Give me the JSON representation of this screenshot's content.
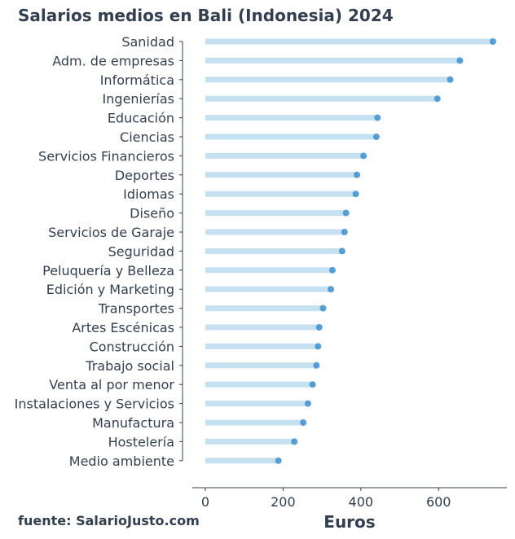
{
  "title": "Salarios medios en Bali (Indonesia) 2024",
  "source": "fuente: SalarioJusto.com",
  "colors": {
    "text": "#333f4e",
    "stem": "#c5e0f1",
    "dot": "#3d8fcf"
  },
  "chart_data": {
    "type": "lollipop",
    "orientation": "horizontal",
    "title": "Salarios medios en Bali (Indonesia) 2024",
    "xlabel": "Euros",
    "ylabel": "",
    "xlim": [
      0,
      740
    ],
    "xticks": [
      0,
      200,
      400,
      600
    ],
    "grid": false,
    "categories": [
      "Sanidad",
      "Adm. de empresas",
      "Informática",
      "Ingenierías",
      "Educación",
      "Ciencias",
      "Servicios Financieros",
      "Deportes",
      "Idiomas",
      "Diseño",
      "Servicios de Garaje",
      "Seguridad",
      "Peluquería y Belleza",
      "Edición y Marketing",
      "Transportes",
      "Artes Escénicas",
      "Construcción",
      "Trabajo social",
      "Venta al por menor",
      "Instalaciones y Servicios",
      "Manufactura",
      "Hostelería",
      "Medio ambiente"
    ],
    "values": [
      740,
      655,
      630,
      597,
      443,
      440,
      407,
      390,
      387,
      362,
      358,
      352,
      327,
      323,
      303,
      293,
      290,
      286,
      276,
      264,
      252,
      229,
      188
    ]
  }
}
